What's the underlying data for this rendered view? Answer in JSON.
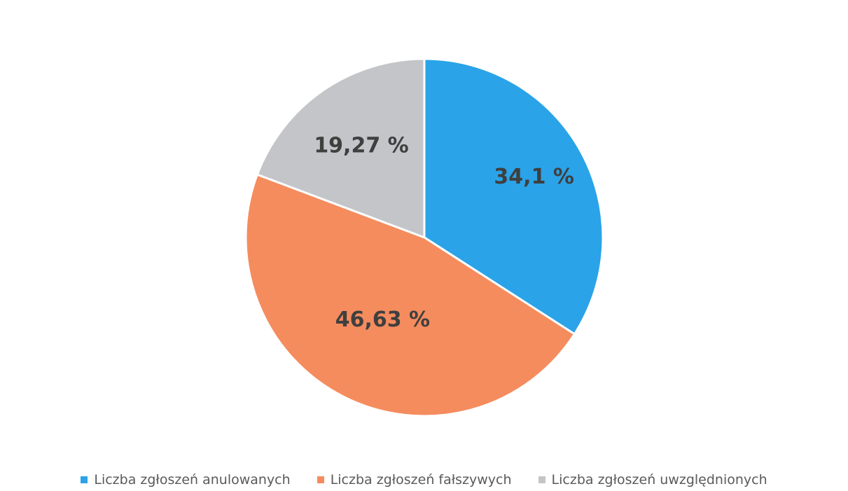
{
  "chart_data": {
    "type": "pie",
    "title": "",
    "series": [
      {
        "name": "Liczba zgłoszeń anulowanych",
        "value": 34.1,
        "label": "34,1 %",
        "color": "#2aa3e8"
      },
      {
        "name": "Liczba zgłoszeń fałszywych",
        "value": 46.63,
        "label": "46,63 %",
        "color": "#f58c5e"
      },
      {
        "name": "Liczba zgłoszeń uwzględnionych",
        "value": 19.27,
        "label": "19,27 %",
        "color": "#c4c5c9"
      }
    ],
    "start_angle": "12 o'clock",
    "direction": "clockwise",
    "legend_position": "bottom"
  }
}
